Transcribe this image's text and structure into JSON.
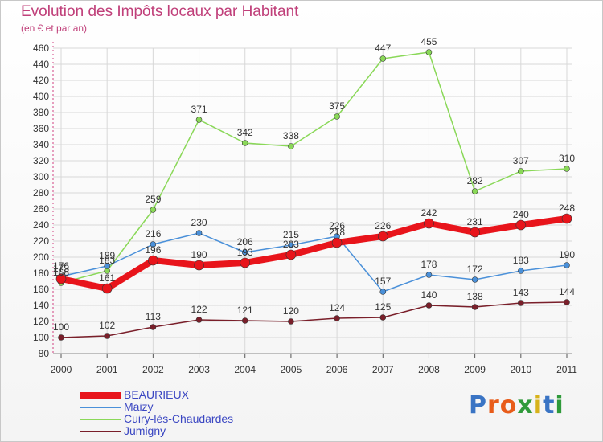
{
  "title": "Evolution des Impôts locaux par Habitant",
  "subtitle": "(en € et par an)",
  "logo": {
    "text": "Proxiti",
    "colors": [
      "#3a74c4",
      "#e85c1a",
      "#e85c1a",
      "#2f9a3a",
      "#d7b21a",
      "#3a74c4",
      "#2f9a3a"
    ]
  },
  "chart_data": {
    "type": "line",
    "x": [
      "2000",
      "2001",
      "2002",
      "2003",
      "2004",
      "2005",
      "2006",
      "2007",
      "2008",
      "2009",
      "2010",
      "2011"
    ],
    "ylim": [
      80,
      460
    ],
    "yticks": [
      80,
      100,
      120,
      140,
      160,
      180,
      200,
      220,
      240,
      260,
      280,
      300,
      320,
      340,
      360,
      380,
      400,
      420,
      440,
      460
    ],
    "grid": true,
    "legend_position": "bottom-left",
    "series": [
      {
        "name": "BEAURIEUX",
        "color": "#e8141b",
        "values": [
          173,
          161,
          196,
          190,
          193,
          203,
          218,
          226,
          242,
          231,
          240,
          248
        ],
        "labels": [
          "173",
          "161",
          "196",
          "190",
          "193",
          "203",
          "218",
          "226",
          "242",
          "231",
          "240",
          "248"
        ]
      },
      {
        "name": "Maizy",
        "color": "#4a90d9",
        "values": [
          176,
          189,
          216,
          230,
          206,
          215,
          226,
          157,
          178,
          172,
          183,
          190
        ],
        "labels": [
          "176",
          "189",
          "216",
          "230",
          "206",
          "215",
          "226",
          "157",
          "178",
          "172",
          "183",
          "190"
        ]
      },
      {
        "name": "Cuiry-lès-Chaudardes",
        "color": "#8ad858",
        "values": [
          168,
          183,
          259,
          371,
          342,
          338,
          375,
          447,
          455,
          282,
          307,
          310
        ],
        "labels": [
          "168",
          "183",
          "259",
          "371",
          "342",
          "338",
          "375",
          "447",
          "455",
          "282",
          "307",
          "310"
        ]
      },
      {
        "name": "Jumigny",
        "color": "#7a1f2a",
        "values": [
          100,
          102,
          113,
          122,
          121,
          120,
          124,
          125,
          140,
          138,
          143,
          144
        ],
        "labels": [
          "100",
          "102",
          "113",
          "122",
          "121",
          "120",
          "124",
          "125",
          "140",
          "138",
          "143",
          "144"
        ]
      }
    ]
  }
}
